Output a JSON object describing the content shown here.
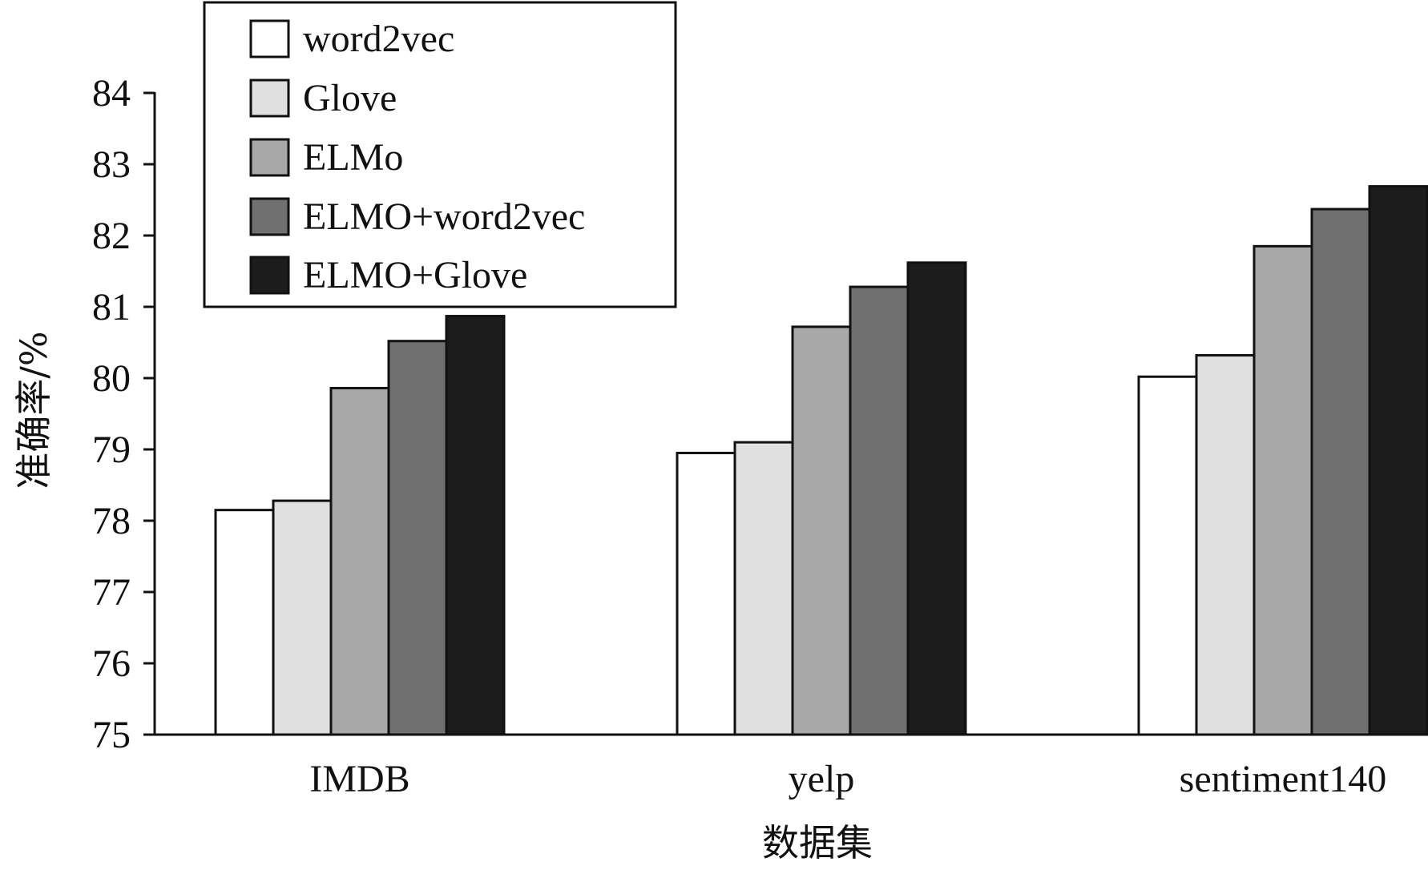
{
  "chart_data": {
    "type": "bar",
    "title": "",
    "xlabel": "数据集",
    "ylabel": "准确率/%",
    "categories": [
      "IMDB",
      "yelp",
      "sentiment140"
    ],
    "ylim": [
      75,
      84
    ],
    "yticks": [
      75,
      76,
      77,
      78,
      79,
      80,
      81,
      82,
      83,
      84
    ],
    "grid": false,
    "legend_position": "top-left",
    "series": [
      {
        "name": "word2vec",
        "color": "#ffffff",
        "values": [
          78.15,
          78.95,
          80.02
        ]
      },
      {
        "name": "Glove",
        "color": "#e0e0e0",
        "values": [
          78.28,
          79.1,
          80.32
        ]
      },
      {
        "name": "ELMo",
        "color": "#a8a8a8",
        "values": [
          79.86,
          80.72,
          81.85
        ]
      },
      {
        "name": "ELMO+word2vec",
        "color": "#707070",
        "values": [
          80.52,
          81.28,
          82.37
        ]
      },
      {
        "name": "ELMO+Glove",
        "color": "#1c1c1c",
        "values": [
          80.87,
          81.62,
          82.69
        ]
      }
    ]
  }
}
